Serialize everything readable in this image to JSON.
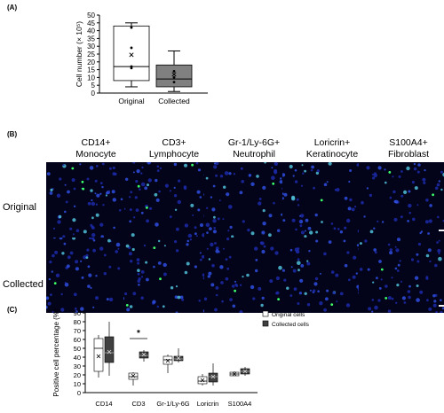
{
  "panelA": {
    "label": "(A)",
    "chart_data": {
      "type": "box",
      "ylabel": "Cell number (× 10⁵)",
      "yticks": [
        0,
        5,
        10,
        15,
        20,
        25,
        30,
        35,
        40,
        45,
        50
      ],
      "ylim": [
        0,
        50
      ],
      "categories": [
        "Original",
        "Collected"
      ],
      "boxes": [
        {
          "name": "Original",
          "whisker_low": 4,
          "q1": 8,
          "median": 17,
          "q3": 43,
          "whisker_high": 45,
          "mean": 24.5,
          "points": [
            42,
            29,
            17,
            16
          ],
          "fill": "#ffffff"
        },
        {
          "name": "Collected",
          "whisker_low": 1,
          "q1": 4,
          "median": 9,
          "q3": 18,
          "whisker_high": 27,
          "mean": 12,
          "points": [
            14,
            10,
            7
          ],
          "fill": "#808080"
        }
      ]
    }
  },
  "panelB": {
    "label": "(B)",
    "columns": [
      [
        "CD14+",
        "Monocyte"
      ],
      [
        "CD3+",
        "Lymphocyte"
      ],
      [
        "Gr-1/Ly-6G+",
        "Neutrophil"
      ],
      [
        "Loricrin+",
        "Keratinocyte"
      ],
      [
        "S100A4+",
        "Fibroblast"
      ]
    ],
    "rows": [
      "Original",
      "Collected"
    ]
  },
  "panelC": {
    "label": "(C)",
    "chart_data": {
      "type": "box",
      "ylabel": "Positive cell percentage (%)",
      "yticks": [
        0,
        10,
        20,
        30,
        40,
        50,
        60,
        70,
        80,
        90
      ],
      "ylim": [
        0,
        90
      ],
      "categories": [
        "CD14",
        "CD3",
        "Gr-1/Ly-6G",
        "Loricrin",
        "S100A4"
      ],
      "legend": [
        "Original cells",
        "Collected cells"
      ],
      "significance": {
        "category": "CD3",
        "text": "*"
      },
      "series": [
        {
          "name": "Original cells",
          "fill": "#ffffff",
          "boxes": [
            {
              "wl": 17,
              "q1": 24,
              "med": 50,
              "q3": 61,
              "wh": 65,
              "mean": 41
            },
            {
              "wl": 8,
              "q1": 15,
              "med": 18,
              "q3": 22,
              "wh": 23,
              "mean": 19
            },
            {
              "wl": 22,
              "q1": 32,
              "med": 37,
              "q3": 41,
              "wh": 43,
              "mean": 36
            },
            {
              "wl": 8,
              "q1": 10,
              "med": 13,
              "q3": 18,
              "wh": 21,
              "mean": 14
            },
            {
              "wl": 19,
              "q1": 19,
              "med": 21,
              "q3": 23,
              "wh": 24,
              "mean": 21
            }
          ]
        },
        {
          "name": "Collected cells",
          "fill": "#404040",
          "boxes": [
            {
              "wl": 19,
              "q1": 34,
              "med": 45,
              "q3": 63,
              "wh": 80,
              "mean": 46
            },
            {
              "wl": 35,
              "q1": 39,
              "med": 42,
              "q3": 46,
              "wh": 48,
              "mean": 43
            },
            {
              "wl": 34,
              "q1": 36,
              "med": 38,
              "q3": 41,
              "wh": 50,
              "mean": 39
            },
            {
              "wl": 8,
              "q1": 12,
              "med": 18,
              "q3": 22,
              "wh": 33,
              "mean": 18
            },
            {
              "wl": 19,
              "q1": 21,
              "med": 24,
              "q3": 27,
              "wh": 29,
              "mean": 24
            }
          ]
        }
      ]
    }
  }
}
